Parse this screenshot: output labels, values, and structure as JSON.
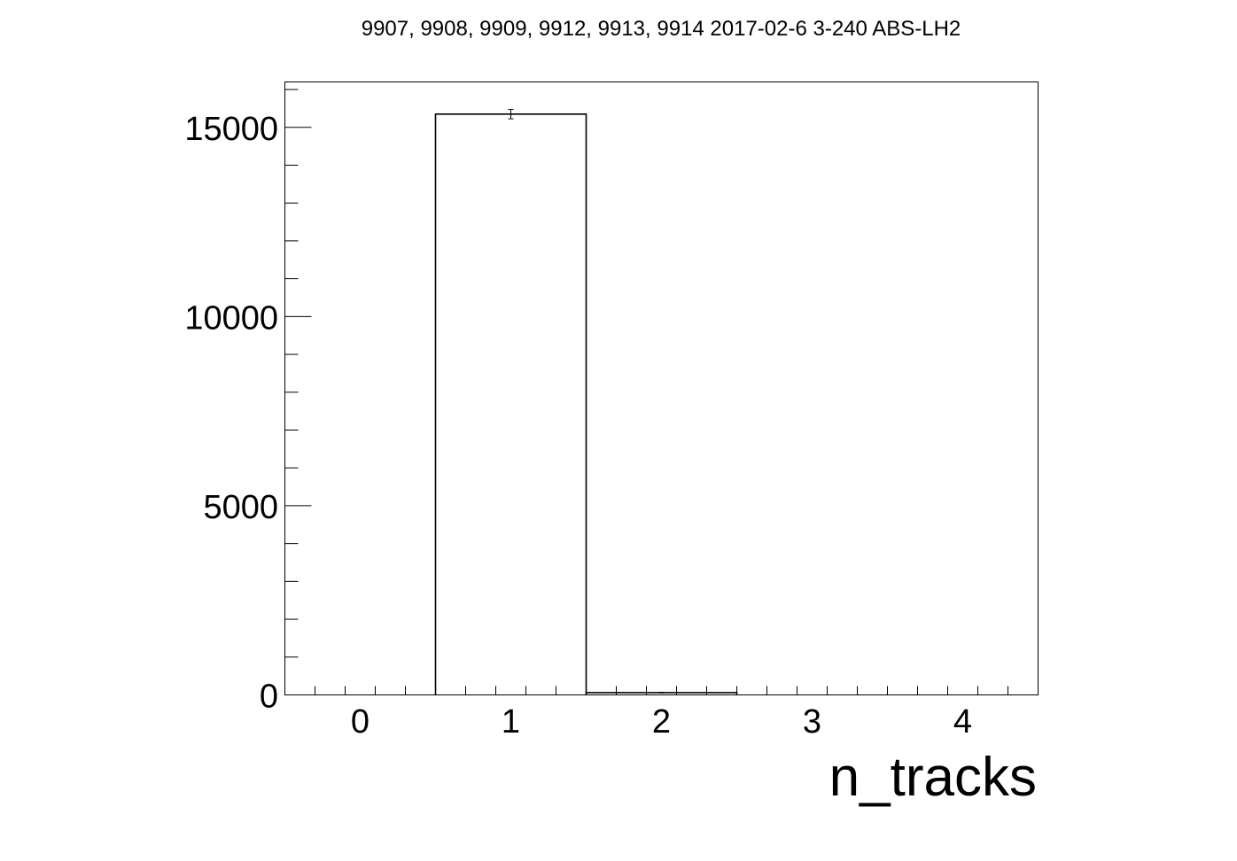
{
  "chart_data": {
    "type": "bar",
    "title": "9907, 9908, 9909, 9912, 9913, 9914 2017-02-6 3-240 ABS-LH2",
    "xlabel": "n_tracks",
    "ylabel": "",
    "bin_width": 1,
    "x": [
      0,
      1,
      2,
      3,
      4
    ],
    "values": [
      0,
      15350,
      60,
      0,
      0
    ],
    "errors": [
      0,
      124,
      8,
      0,
      0
    ],
    "xlim": [
      -0.5,
      4.5
    ],
    "ylim": [
      0,
      16200
    ],
    "x_ticks": [
      "0",
      "1",
      "2",
      "3",
      "4"
    ],
    "y_ticks": [
      "0",
      "5000",
      "10000",
      "15000"
    ],
    "grid": false,
    "legend": "none",
    "colors": {
      "line": "#000000",
      "background": "#ffffff"
    }
  }
}
